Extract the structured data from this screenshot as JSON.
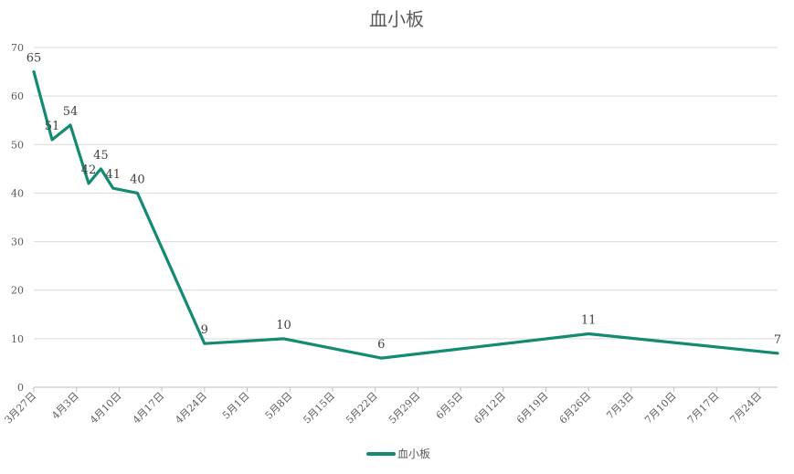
{
  "chart_data": {
    "type": "line",
    "title": "血小板",
    "xlabel": "",
    "ylabel": "",
    "ylim": [
      0,
      70
    ],
    "yticks": [
      0,
      10,
      20,
      30,
      40,
      50,
      60,
      70
    ],
    "grid": "horizontal",
    "legend_position": "bottom",
    "x_tick_labels": [
      "3月27日",
      "4月3日",
      "4月10日",
      "4月17日",
      "4月24日",
      "5月1日",
      "5月8日",
      "5月15日",
      "5月22日",
      "5月29日",
      "6月5日",
      "6月12日",
      "6月19日",
      "6月26日",
      "7月3日",
      "7月10日",
      "7月17日",
      "7月24日"
    ],
    "x_range": [
      "3月27日",
      "7月27日"
    ],
    "series": [
      {
        "name": "血小板",
        "color": "#138a72",
        "points": [
          {
            "date": "3月27日",
            "value": 65
          },
          {
            "date": "3月30日",
            "value": 51
          },
          {
            "date": "4月2日",
            "value": 54
          },
          {
            "date": "4月5日",
            "value": 42
          },
          {
            "date": "4月7日",
            "value": 45
          },
          {
            "date": "4月9日",
            "value": 41
          },
          {
            "date": "4月13日",
            "value": 40
          },
          {
            "date": "4月24日",
            "value": 9
          },
          {
            "date": "5月7日",
            "value": 10
          },
          {
            "date": "5月23日",
            "value": 6
          },
          {
            "date": "6月26日",
            "value": 11
          },
          {
            "date": "7月27日",
            "value": 7
          }
        ]
      }
    ]
  }
}
